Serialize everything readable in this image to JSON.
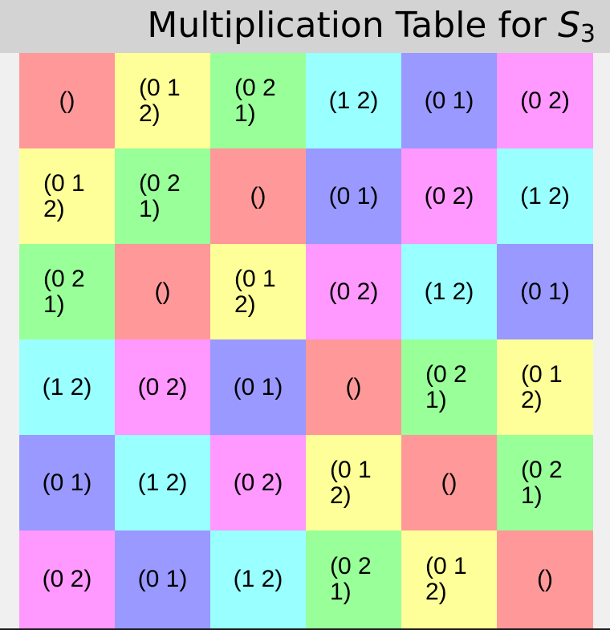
{
  "title": {
    "text": "Multiplication Table for ",
    "symbol": "S",
    "subscript": "3"
  },
  "table": {
    "rows": [
      [
        "()",
        "(0 1 2)",
        "(0 2 1)",
        "(1 2)",
        "(0 1)",
        "(0 2)"
      ],
      [
        "(0 1 2)",
        "(0 2 1)",
        "()",
        "(0 1)",
        "(0 2)",
        "(1 2)"
      ],
      [
        "(0 2 1)",
        "()",
        "(0 1 2)",
        "(0 2)",
        "(1 2)",
        "(0 1)"
      ],
      [
        "(1 2)",
        "(0 2)",
        "(0 1)",
        "()",
        "(0 2 1)",
        "(0 1 2)"
      ],
      [
        "(0 1)",
        "(1 2)",
        "(0 2)",
        "(0 1 2)",
        "()",
        "(0 2 1)"
      ],
      [
        "(0 2)",
        "(0 1)",
        "(1 2)",
        "(0 2 1)",
        "(0 1 2)",
        "()"
      ]
    ]
  },
  "colors": {
    "()": "#ff9999",
    "(0 1 2)": "#ffff99",
    "(0 2 1)": "#99ff99",
    "(1 2)": "#99ffff",
    "(0 1)": "#9999ff",
    "(0 2)": "#ff99ff",
    "title_bar": "#d3d3d3",
    "background": "#f0f0f0"
  }
}
